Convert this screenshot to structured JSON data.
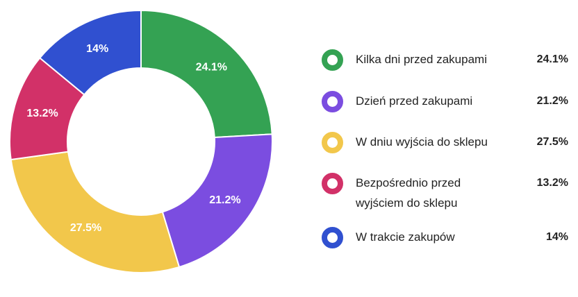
{
  "chart_data": {
    "type": "pie",
    "categories": [
      "Kilka dni przed zakupami",
      "Dzień przed zakupami",
      "W dniu wyjścia do sklepu",
      "Bezpośrednio przed wyjściem do sklepu",
      "W trakcie zakupów"
    ],
    "values": [
      24.1,
      21.2,
      27.5,
      13.2,
      14
    ],
    "value_labels": [
      "24.1%",
      "21.2%",
      "27.5%",
      "13.2%",
      "14%"
    ],
    "colors": [
      "#34a253",
      "#7b4de0",
      "#f2c74b",
      "#d23168",
      "#3050d0"
    ],
    "legend": "right",
    "style": "donut"
  },
  "legend": {
    "items": [
      {
        "label": "Kilka dni przed zakupami",
        "value": "24.1%"
      },
      {
        "label": "Dzień przed zakupami",
        "value": "21.2%"
      },
      {
        "label": "W dniu wyjścia do sklepu",
        "value": "27.5%"
      },
      {
        "label": "Bezpośrednio przed wyjściem do sklepu",
        "value": "13.2%"
      },
      {
        "label": "W trakcie zakupów",
        "value": "14%"
      }
    ]
  }
}
